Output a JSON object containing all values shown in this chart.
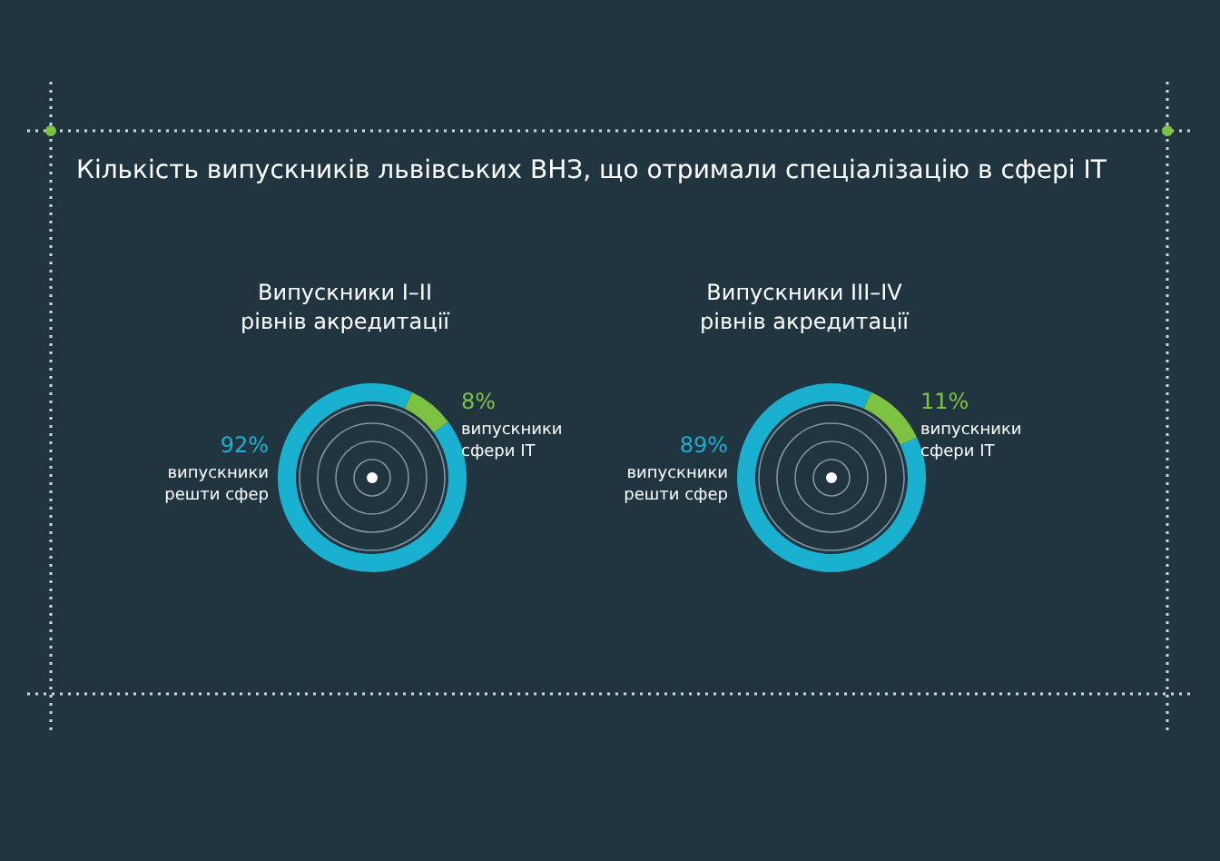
{
  "chart_data": [
    {
      "type": "donut",
      "title": "Кількість випускників львівських ВНЗ, що отримали спеціалізацію в сфері IT",
      "subtitle": "Випускники I–II\nрівнів акредитації",
      "categories": [
        "випускники сфери IT",
        "випускники решти сфер"
      ],
      "values": [
        8,
        92
      ],
      "colors": [
        "#7dc242",
        "#1ab0d0"
      ],
      "value_labels": [
        "8%",
        "92%"
      ],
      "legend": false
    },
    {
      "type": "donut",
      "subtitle": "Випускники III–IV\nрівнів акредитації",
      "categories": [
        "випускники сфери IT",
        "випускники решти сфер"
      ],
      "values": [
        11,
        89
      ],
      "colors": [
        "#7dc242",
        "#1ab0d0"
      ],
      "value_labels": [
        "11%",
        "89%"
      ],
      "legend": false
    }
  ]
}
